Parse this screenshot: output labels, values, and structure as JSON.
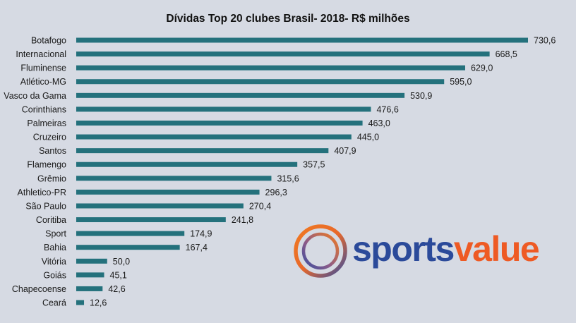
{
  "chart_data": {
    "type": "bar",
    "orientation": "horizontal",
    "title": "Dívidas Top  20 clubes Brasil- 2018- R$ milhões",
    "xlabel": "",
    "ylabel": "",
    "categories": [
      "Botafogo",
      "Internacional",
      "Fluminense",
      "Atlético-MG",
      "Vasco da Gama",
      "Corinthians",
      "Palmeiras",
      "Cruzeiro",
      "Santos",
      "Flamengo",
      "Grêmio",
      "Athletico-PR",
      "São Paulo",
      "Coritiba",
      "Sport",
      "Bahia",
      "Vitória",
      "Goiás",
      "Chapecoense",
      "Ceará"
    ],
    "values": [
      730.6,
      668.5,
      629.0,
      595.0,
      530.9,
      476.6,
      463.0,
      445.0,
      407.9,
      357.5,
      315.6,
      296.3,
      270.4,
      241.8,
      174.9,
      167.4,
      50.0,
      45.1,
      42.6,
      12.6
    ],
    "value_labels": [
      "730,6",
      "668,5",
      "629,0",
      "595,0",
      "530,9",
      "476,6",
      "463,0",
      "445,0",
      "407,9",
      "357,5",
      "315,6",
      "296,3",
      "270,4",
      "241,8",
      "174,9",
      "167,4",
      "50,0",
      "45,1",
      "42,6",
      "12,6"
    ],
    "xlim": [
      0,
      730.6
    ],
    "grid": false,
    "legend": "none",
    "bar_color": "#24717c"
  },
  "logo": {
    "part1": "sports",
    "part2": "value",
    "color1": "#2b4a9a",
    "color2": "#ee5a24"
  }
}
